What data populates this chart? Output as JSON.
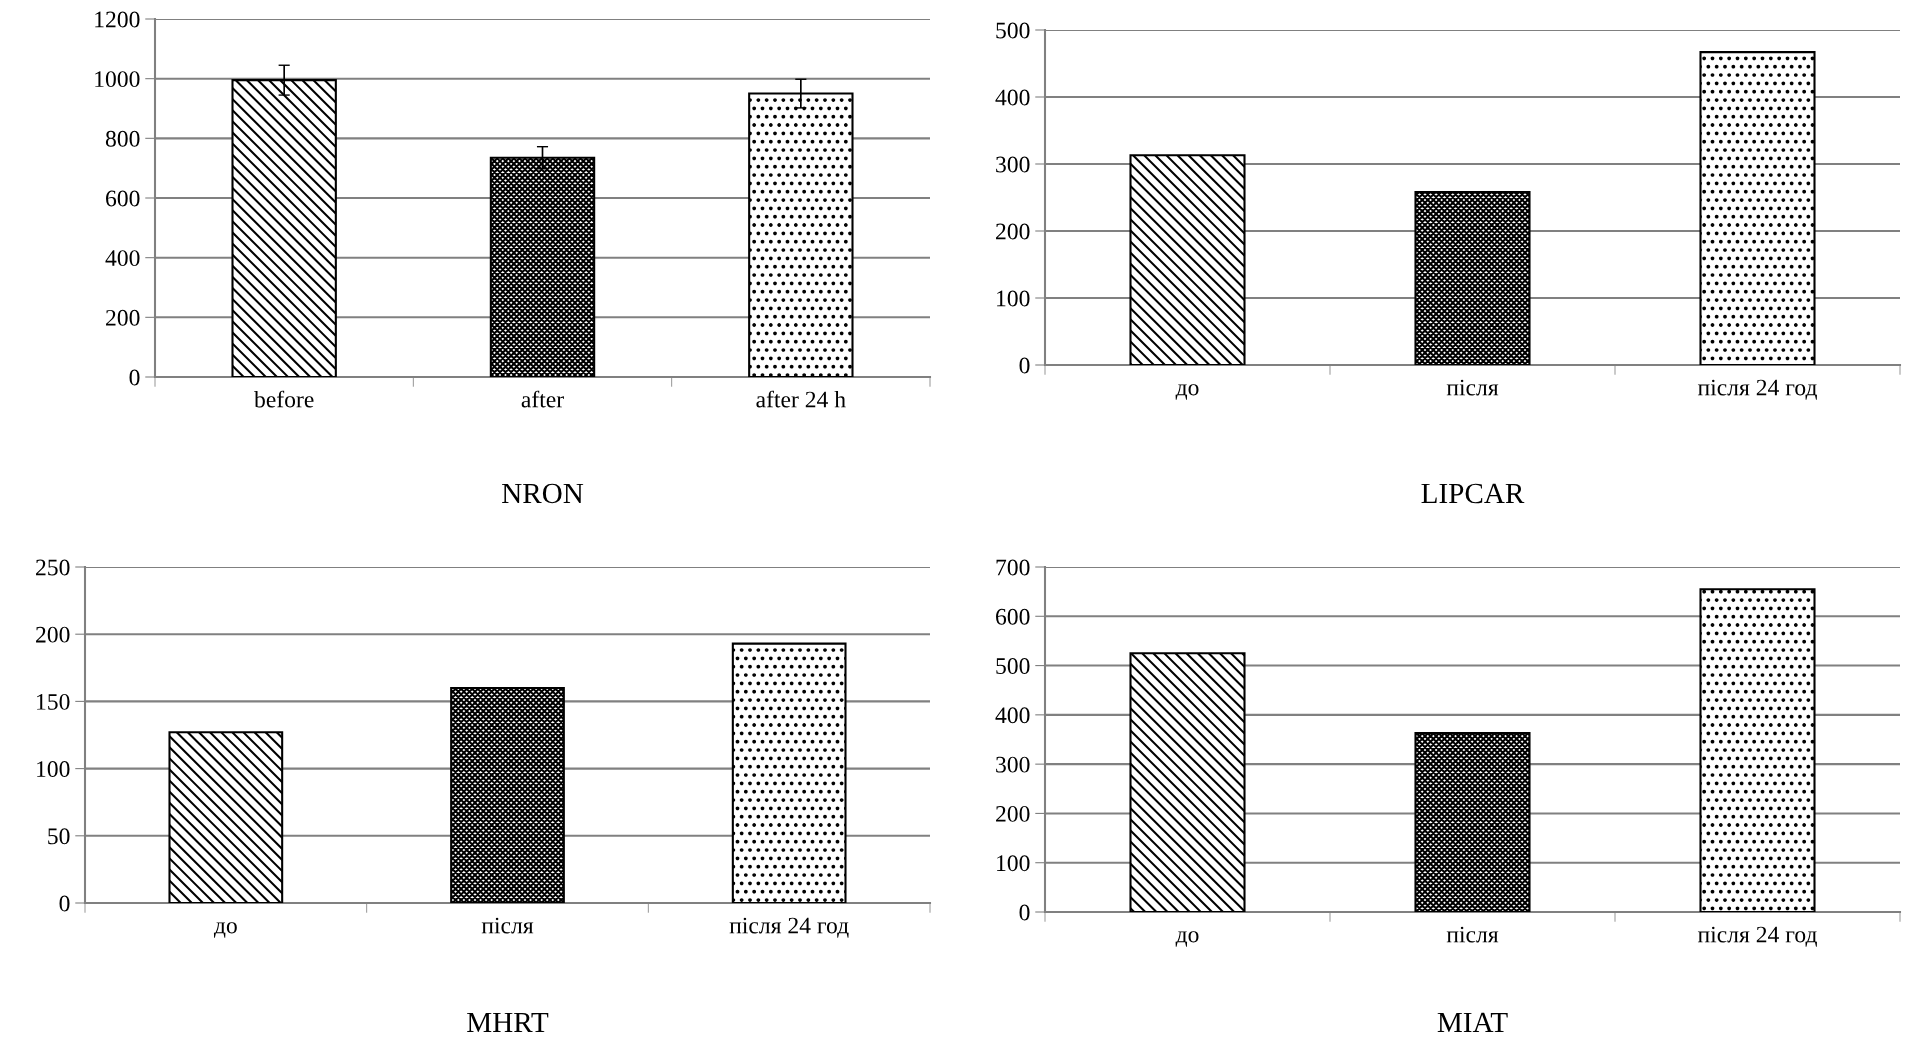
{
  "chart_data": [
    {
      "type": "bar",
      "title": "NRON",
      "categories": [
        "before",
        "after",
        "after 24 h"
      ],
      "values": [
        995,
        735,
        950
      ],
      "errors": [
        50,
        37,
        48
      ],
      "colors": [
        "#000000",
        "#000000",
        "#000000"
      ],
      "ylim": [
        0,
        1200
      ],
      "yticks": [
        0,
        200,
        400,
        600,
        800,
        1000,
        1200
      ],
      "grid": "y"
    },
    {
      "type": "bar",
      "title": "LIPCAR",
      "categories": [
        "до",
        "після",
        "після 24 год"
      ],
      "values": [
        313,
        258,
        467
      ],
      "colors": [
        "#000000",
        "#000000",
        "#000000"
      ],
      "ylim": [
        0,
        500
      ],
      "yticks": [
        0,
        100,
        200,
        300,
        400,
        500
      ],
      "grid": "y"
    },
    {
      "type": "bar",
      "title": "MHRT",
      "categories": [
        "до",
        "після",
        "після 24 год"
      ],
      "values": [
        127,
        160,
        193
      ],
      "colors": [
        "#000000",
        "#000000",
        "#000000"
      ],
      "ylim": [
        0,
        250
      ],
      "yticks": [
        0,
        50,
        100,
        150,
        200,
        250
      ],
      "grid": "y"
    },
    {
      "type": "bar",
      "title": "MIAT",
      "categories": [
        "до",
        "після",
        "після 24 год"
      ],
      "values": [
        525,
        363,
        655
      ],
      "colors": [
        "#000000",
        "#000000",
        "#000000"
      ],
      "ylim": [
        0,
        700
      ],
      "yticks": [
        0,
        100,
        200,
        300,
        400,
        500,
        600,
        700
      ],
      "grid": "y"
    }
  ]
}
